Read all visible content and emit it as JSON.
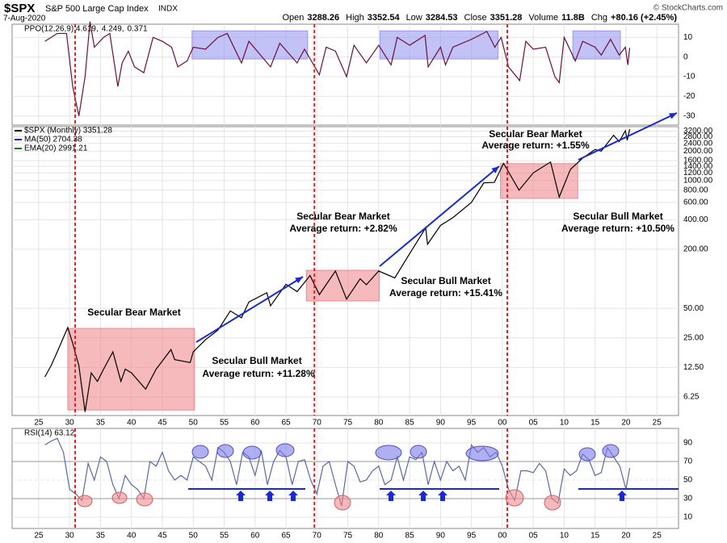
{
  "header": {
    "symbol": "$SPX",
    "name": "S&P 500 Large Cap Index",
    "exchange": "INDX",
    "date": "7-Aug-2020",
    "credit": "© StockCharts.com",
    "quote": [
      {
        "label": "Open",
        "value": 3288.26
      },
      {
        "label": "High",
        "value": 3352.54
      },
      {
        "label": "Low",
        "value": 3284.53
      },
      {
        "label": "Close",
        "value": 3351.28
      },
      {
        "label": "Volume",
        "value": "11.8B"
      },
      {
        "label": "Chg",
        "value": "+80.16 (+2.45%)"
      }
    ]
  },
  "chart_data": [
    {
      "type": "line",
      "legend": [
        {
          "text": "PPO(12,26,9) 4.619,",
          "color": "#000000"
        },
        {
          "text": "4.249,",
          "color": "#d02020"
        },
        {
          "text": "0.371",
          "color": "#2e7d5b"
        }
      ],
      "xlim": [
        1920.7,
        2028.5
      ],
      "ylim": [
        -34.6,
        16.7
      ],
      "yticks": [
        10,
        0,
        -10,
        -20,
        -30
      ],
      "grid": true,
      "regions": [
        {
          "x": [
            1949.8,
            1968.5
          ],
          "y": [
            -1,
            13.3
          ]
        },
        {
          "x": [
            1980.2,
            1999.3
          ],
          "y": [
            -1,
            13.3
          ]
        },
        {
          "x": [
            2011.4,
            2019.1
          ],
          "y": [
            -1,
            13.3
          ]
        }
      ],
      "region_color": "#9a9af0",
      "series": [
        {
          "color": "#6a1040",
          "x": [
            1926,
            1928,
            1929.5,
            1930.5,
            1931.5,
            1932.5,
            1933.3,
            1934,
            1935.5,
            1936.5,
            1937.8,
            1938.5,
            1939.5,
            1940.5,
            1942,
            1943.5,
            1945,
            1946.5,
            1947.5,
            1949,
            1950,
            1952,
            1954,
            1955.5,
            1957.8,
            1959,
            1962.5,
            1964,
            1966.8,
            1968,
            1970.4,
            1971.5,
            1973,
            1974.8,
            1976,
            1978,
            1980,
            1982,
            1983,
            1985,
            1987.5,
            1988,
            1990,
            1990.8,
            1992,
            1995,
            1997.5,
            1998.8,
            1999.8,
            2001,
            2002.8,
            2003.8,
            2005,
            2007,
            2008.5,
            2009.2,
            2010,
            2011.8,
            2013,
            2015,
            2016,
            2017.5,
            2018.9,
            2019.9,
            2020.3,
            2020.6
          ],
          "values": [
            8,
            12,
            12,
            -15,
            -30,
            -10,
            18,
            5,
            10,
            12,
            -15,
            -3,
            3,
            -5,
            -8,
            10,
            8,
            5,
            -5,
            -2,
            5,
            4,
            10,
            12,
            -3,
            8,
            -5,
            7,
            -3,
            4,
            -9,
            5,
            3,
            -10,
            6,
            -3,
            6,
            -4,
            10,
            6,
            11,
            -5,
            5,
            -4,
            5,
            9,
            13,
            5,
            10,
            -5,
            -12,
            8,
            4,
            5,
            -10,
            -13,
            10,
            -2,
            8,
            5,
            1,
            9,
            1,
            5,
            -4,
            4.6
          ]
        }
      ]
    },
    {
      "type": "line",
      "log_y": true,
      "legend": [
        {
          "text": "$SPX (Monthly) 3351.28",
          "color": "#000000"
        },
        {
          "text": "MA(50) 2704.38",
          "color": "#1a1ab0"
        },
        {
          "text": "EMA(20) 2991.21",
          "color": "#1a7a1a"
        }
      ],
      "xlim": [
        1920.7,
        2028.5
      ],
      "ylim": [
        4.04,
        3550
      ],
      "xticks": [
        {
          "value": 1925,
          "label": "25"
        },
        {
          "value": 1930,
          "label": "30"
        },
        {
          "value": 1935,
          "label": "35"
        },
        {
          "value": 1940,
          "label": "40"
        },
        {
          "value": 1945,
          "label": "45"
        },
        {
          "value": 1950,
          "label": "50"
        },
        {
          "value": 1955,
          "label": "55"
        },
        {
          "value": 1960,
          "label": "60"
        },
        {
          "value": 1965,
          "label": "65"
        },
        {
          "value": 1970,
          "label": "70"
        },
        {
          "value": 1975,
          "label": "75"
        },
        {
          "value": 1980,
          "label": "80"
        },
        {
          "value": 1985,
          "label": "85"
        },
        {
          "value": 1990,
          "label": "90"
        },
        {
          "value": 1995,
          "label": "95"
        },
        {
          "value": 2000,
          "label": "00"
        },
        {
          "value": 2005,
          "label": "05"
        },
        {
          "value": 2010,
          "label": "10"
        },
        {
          "value": 2015,
          "label": "15"
        },
        {
          "value": 2020,
          "label": "20"
        },
        {
          "value": 2025,
          "label": "25"
        }
      ],
      "yticks": [
        6.25,
        {
          "value": 12.5,
          "label": "12.50"
        },
        {
          "value": 25,
          "label": "25.00"
        },
        {
          "value": 50,
          "label": "50.00"
        },
        {
          "value": 200,
          "label": "200.00"
        },
        {
          "value": 400,
          "label": "400.00"
        },
        {
          "value": 600,
          "label": "600.00"
        },
        {
          "value": 800,
          "label": "800.00"
        },
        {
          "value": 1000,
          "label": "1000.00"
        },
        {
          "value": 1200,
          "label": "1200.00"
        },
        {
          "value": 1400,
          "label": "1400.00"
        },
        {
          "value": 1600,
          "label": "1600.00"
        },
        {
          "value": 2000,
          "label": "2000.00"
        },
        {
          "value": 2400,
          "label": "2400.00"
        },
        {
          "value": 2800,
          "label": "2800.00"
        },
        {
          "value": 3200,
          "label": "3200.00"
        }
      ],
      "grid": true,
      "markers": [
        1930.9,
        1969.6,
        2000.8
      ],
      "marker_color": "#e02020",
      "regions": [
        {
          "x": [
            1929.7,
            1950.2
          ],
          "y": [
            4.6,
            31.2
          ]
        },
        {
          "x": [
            1968.3,
            1980.1
          ],
          "y": [
            59.5,
            122
          ]
        },
        {
          "x": [
            1999.7,
            2012.2
          ],
          "y": [
            660,
            1490
          ]
        }
      ],
      "region_color": "#f08a8f",
      "annotations": [
        {
          "text": "Secular Bear Market",
          "color": "#d42020"
        },
        {
          "text": "Secular Bull Market",
          "color": "#1a1aa8"
        },
        {
          "text": "Average return: +11.28%",
          "color": "#1a1aa8"
        },
        {
          "text": "Secular Bear Market",
          "color": "#d42020"
        },
        {
          "text": "Average return: +2.82%",
          "color": "#d42020"
        },
        {
          "text": "Secular Bull Market",
          "color": "#1a1aa8"
        },
        {
          "text": "Average return: +15.41%",
          "color": "#1a1aa8"
        },
        {
          "text": "Secular Bear Market",
          "color": "#d42020"
        },
        {
          "text": "Average return: +1.55%",
          "color": "#d42020"
        },
        {
          "text": "Secular Bull Market",
          "color": "#1a1aa8"
        },
        {
          "text": "Average return: +10.50%",
          "color": "#1a1aa8"
        }
      ],
      "series": [
        {
          "color": "#000000",
          "x": [
            1926,
            1927,
            1928,
            1929.7,
            1930.5,
            1931.5,
            1932.5,
            1933.5,
            1934.5,
            1935.5,
            1937,
            1938.3,
            1939,
            1940,
            1942.3,
            1944,
            1946.4,
            1947,
            1949.5,
            1950,
            1952,
            1954,
            1956,
            1957.8,
            1959,
            1961.9,
            1962.5,
            1965,
            1966.8,
            1968.9,
            1970.4,
            1973,
            1974.8,
            1977,
            1978,
            1980,
            1982.6,
            1985,
            1987.6,
            1987.9,
            1990,
            1992,
            1995,
            1997,
            1998.7,
            2000.2,
            2002.7,
            2005,
            2007.8,
            2009.2,
            2011,
            2013,
            2015,
            2016,
            2018,
            2018.9,
            2019.9,
            2020.2,
            2020.6
          ],
          "values": [
            10,
            13,
            18,
            31.9,
            22,
            13,
            4.4,
            11,
            9,
            12,
            18,
            9,
            12,
            11,
            7.5,
            12,
            19,
            15,
            14,
            18,
            24,
            30,
            47,
            40,
            58,
            72,
            53,
            88,
            74,
            108,
            69,
            120,
            62,
            100,
            87,
            120,
            102,
            180,
            330,
            225,
            350,
            420,
            600,
            950,
            960,
            1500,
            800,
            1200,
            1550,
            680,
            1300,
            1700,
            2080,
            2000,
            2900,
            2500,
            3230,
            2580,
            3351.28
          ]
        }
      ]
    },
    {
      "type": "line",
      "legend": [
        {
          "text": "RSI(14) 63.12",
          "color": "#000000"
        }
      ],
      "xlim": [
        1920.7,
        2028.5
      ],
      "ylim": [
        -2.2,
        105.7
      ],
      "yticks": [
        90,
        70,
        50,
        30,
        10
      ],
      "grid": true,
      "xticks": [
        {
          "value": 1925,
          "label": "25"
        },
        {
          "value": 1930,
          "label": "30"
        },
        {
          "value": 1935,
          "label": "35"
        },
        {
          "value": 1940,
          "label": "40"
        },
        {
          "value": 1945,
          "label": "45"
        },
        {
          "value": 1950,
          "label": "50"
        },
        {
          "value": 1955,
          "label": "55"
        },
        {
          "value": 1960,
          "label": "60"
        },
        {
          "value": 1965,
          "label": "65"
        },
        {
          "value": 1970,
          "label": "70"
        },
        {
          "value": 1975,
          "label": "75"
        },
        {
          "value": 1980,
          "label": "80"
        },
        {
          "value": 1985,
          "label": "85"
        },
        {
          "value": 1990,
          "label": "90"
        },
        {
          "value": 1995,
          "label": "95"
        },
        {
          "value": 2000,
          "label": "00"
        },
        {
          "value": 2005,
          "label": "05"
        },
        {
          "value": 2010,
          "label": "10"
        },
        {
          "value": 2015,
          "label": "15"
        },
        {
          "value": 2020,
          "label": "20"
        },
        {
          "value": 2025,
          "label": "25"
        }
      ],
      "series": [
        {
          "color": "#5a6aa0",
          "x": [
            1926,
            1927,
            1928,
            1929,
            1930,
            1931,
            1932,
            1933,
            1934,
            1935,
            1936,
            1937,
            1938,
            1939,
            1940,
            1941,
            1942,
            1943,
            1944,
            1945,
            1946,
            1947,
            1948,
            1949,
            1950,
            1951,
            1952,
            1953,
            1954,
            1955,
            1956,
            1957,
            1958,
            1959,
            1960,
            1961,
            1962,
            1963,
            1964,
            1965,
            1966,
            1967,
            1968,
            1969,
            1970,
            1971,
            1972,
            1973,
            1974,
            1975,
            1976,
            1977,
            1978,
            1979,
            1980,
            1981,
            1982,
            1983,
            1984,
            1985,
            1986,
            1987,
            1988,
            1989,
            1990,
            1991,
            1992,
            1993,
            1994,
            1995,
            1996,
            1997,
            1998,
            1999,
            2000,
            2001,
            2002,
            2003,
            2004,
            2005,
            2006,
            2007,
            2008,
            2009,
            2010,
            2011,
            2012,
            2013,
            2014,
            2015,
            2016,
            2017,
            2018,
            2019,
            2020,
            2020.6
          ],
          "values": [
            88,
            92,
            95,
            80,
            40,
            35,
            28,
            68,
            50,
            75,
            70,
            45,
            30,
            55,
            45,
            40,
            30,
            70,
            65,
            80,
            60,
            50,
            55,
            50,
            75,
            70,
            65,
            50,
            85,
            80,
            70,
            45,
            80,
            75,
            55,
            82,
            45,
            70,
            82,
            75,
            45,
            70,
            72,
            50,
            35,
            65,
            70,
            45,
            22,
            70,
            65,
            48,
            50,
            60,
            65,
            45,
            50,
            75,
            50,
            75,
            72,
            80,
            45,
            70,
            50,
            70,
            60,
            65,
            50,
            88,
            80,
            85,
            75,
            80,
            65,
            40,
            28,
            60,
            60,
            58,
            68,
            60,
            30,
            25,
            62,
            55,
            60,
            78,
            72,
            55,
            58,
            85,
            75,
            65,
            40,
            63.12
          ]
        }
      ]
    }
  ]
}
